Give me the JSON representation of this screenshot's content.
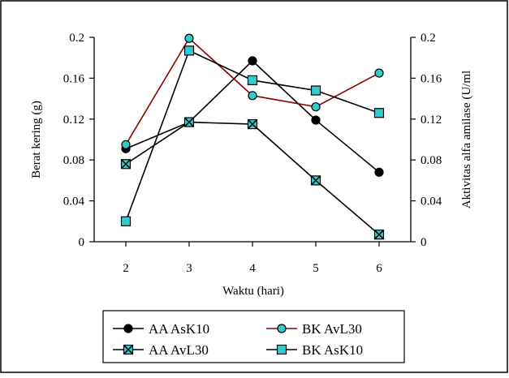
{
  "chart_data": {
    "type": "line",
    "xlabel": "Waktu (hari)",
    "ylabel_left": "Berat kering (g)",
    "ylabel_right": "Aktivitas alfa amilase (U/ml",
    "categories": [
      "2",
      "3",
      "4",
      "5",
      "6"
    ],
    "ylim_left": [
      0,
      0.2
    ],
    "ylim_right": [
      0,
      0.2
    ],
    "yticks_left": [
      "0",
      "0.04",
      "0.08",
      "0.12",
      "0.16",
      "0.2"
    ],
    "yticks_right": [
      "0",
      "0.04",
      "0.08",
      "0.12",
      "0.16",
      "0.2"
    ],
    "grid": false,
    "legend_position": "bottom",
    "series": [
      {
        "name": "AA AsK10",
        "axis": "right",
        "marker": "circle",
        "line_color": "#000000",
        "marker_fill": "#000000",
        "values": [
          0.091,
          0.117,
          0.177,
          0.119,
          0.068
        ]
      },
      {
        "name": "BK AvL30",
        "axis": "left",
        "marker": "circle",
        "line_color": "#8b0000",
        "marker_fill": "#33cccc",
        "values": [
          0.095,
          0.199,
          0.143,
          0.132,
          0.165
        ]
      },
      {
        "name": "AA AvL30",
        "axis": "right",
        "marker": "square-x",
        "line_color": "#000000",
        "marker_fill": "#33cccc",
        "values": [
          0.076,
          0.117,
          0.115,
          0.06,
          0.007
        ]
      },
      {
        "name": "BK AsK10",
        "axis": "left",
        "marker": "square",
        "line_color": "#000000",
        "marker_fill": "#33cccc",
        "values": [
          0.02,
          0.187,
          0.158,
          0.148,
          0.126
        ]
      }
    ]
  }
}
